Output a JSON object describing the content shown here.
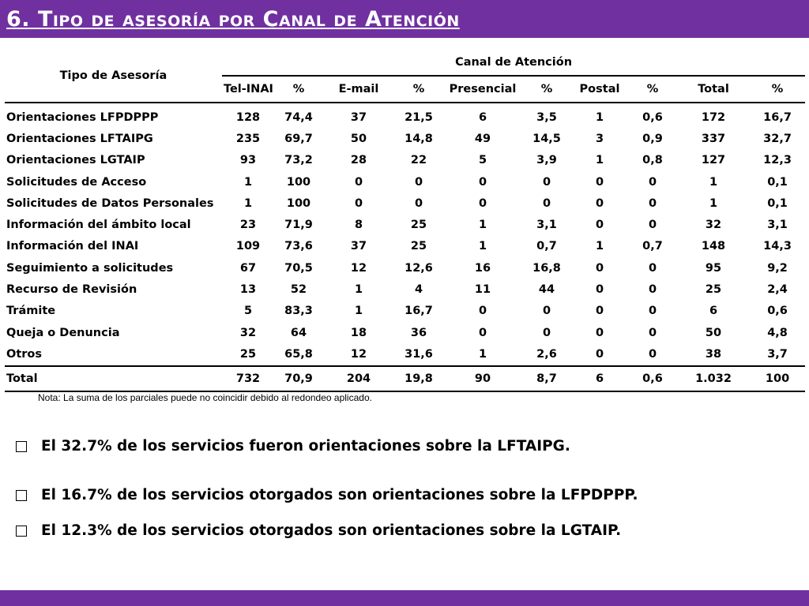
{
  "slide": {
    "title": "6. Tipo de asesoría por Canal de Atención",
    "note": "Nota: La suma de los parciales puede no coincidir debido al redondeo aplicado.",
    "bar_color": "#7030A0"
  },
  "table": {
    "stub_header": "Tipo de Asesoría",
    "group_header": "Canal de Atención",
    "columns": [
      "Tel-INAI",
      "%",
      "E-mail",
      "%",
      "Presencial",
      "%",
      "Postal",
      "%",
      "Total",
      "%"
    ],
    "rows": [
      {
        "label": "Orientaciones LFPDPPP",
        "values": [
          "128",
          "74,4",
          "37",
          "21,5",
          "6",
          "3,5",
          "1",
          "0,6",
          "172",
          "16,7"
        ]
      },
      {
        "label": "Orientaciones LFTAIPG",
        "values": [
          "235",
          "69,7",
          "50",
          "14,8",
          "49",
          "14,5",
          "3",
          "0,9",
          "337",
          "32,7"
        ]
      },
      {
        "label": "Orientaciones LGTAIP",
        "values": [
          "93",
          "73,2",
          "28",
          "22",
          "5",
          "3,9",
          "1",
          "0,8",
          "127",
          "12,3"
        ]
      },
      {
        "label": "Solicitudes de Acceso",
        "values": [
          "1",
          "100",
          "0",
          "0",
          "0",
          "0",
          "0",
          "0",
          "1",
          "0,1"
        ]
      },
      {
        "label": "Solicitudes de Datos Personales",
        "values": [
          "1",
          "100",
          "0",
          "0",
          "0",
          "0",
          "0",
          "0",
          "1",
          "0,1"
        ]
      },
      {
        "label": "Información del ámbito local",
        "values": [
          "23",
          "71,9",
          "8",
          "25",
          "1",
          "3,1",
          "0",
          "0",
          "32",
          "3,1"
        ]
      },
      {
        "label": "Información del INAI",
        "values": [
          "109",
          "73,6",
          "37",
          "25",
          "1",
          "0,7",
          "1",
          "0,7",
          "148",
          "14,3"
        ]
      },
      {
        "label": "Seguimiento a solicitudes",
        "values": [
          "67",
          "70,5",
          "12",
          "12,6",
          "16",
          "16,8",
          "0",
          "0",
          "95",
          "9,2"
        ]
      },
      {
        "label": "Recurso de Revisión",
        "values": [
          "13",
          "52",
          "1",
          "4",
          "11",
          "44",
          "0",
          "0",
          "25",
          "2,4"
        ]
      },
      {
        "label": "Trámite",
        "values": [
          "5",
          "83,3",
          "1",
          "16,7",
          "0",
          "0",
          "0",
          "0",
          "6",
          "0,6"
        ]
      },
      {
        "label": "Queja o Denuncia",
        "values": [
          "32",
          "64",
          "18",
          "36",
          "0",
          "0",
          "0",
          "0",
          "50",
          "4,8"
        ]
      },
      {
        "label": "Otros",
        "values": [
          "25",
          "65,8",
          "12",
          "31,6",
          "1",
          "2,6",
          "0",
          "0",
          "38",
          "3,7"
        ]
      }
    ],
    "total": {
      "label": "Total",
      "values": [
        "732",
        "70,9",
        "204",
        "19,8",
        "90",
        "8,7",
        "6",
        "0,6",
        "1.032",
        "100"
      ]
    }
  },
  "bullets": [
    "El 32.7% de los servicios fueron orientaciones sobre la LFTAIPG.",
    "El 16.7% de los servicios otorgados son orientaciones sobre la LFPDPPP.",
    "El 12.3% de los servicios otorgados son orientaciones sobre la LGTAIP."
  ],
  "icons": {
    "bullet": "checkbox-icon"
  }
}
